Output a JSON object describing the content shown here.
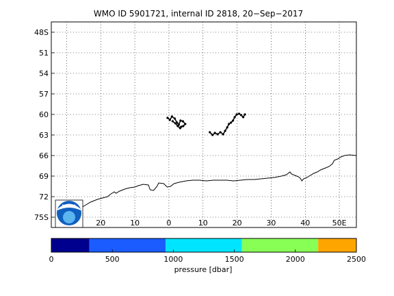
{
  "title": "WMO ID 5901721, internal ID 2818, 20−Sep−2017",
  "map": {
    "lat_labels": [
      {
        "value": -48,
        "label": "48S"
      },
      {
        "value": -51,
        "label": "51"
      },
      {
        "value": -54,
        "label": "54"
      },
      {
        "value": -57,
        "label": "57"
      },
      {
        "value": -60,
        "label": "60"
      },
      {
        "value": -63,
        "label": "63"
      },
      {
        "value": -66,
        "label": "66"
      },
      {
        "value": -69,
        "label": "69"
      },
      {
        "value": -72,
        "label": "72"
      },
      {
        "value": -75,
        "label": "75S"
      }
    ],
    "lon_labels": [
      {
        "value": -30,
        "label": "30W"
      },
      {
        "value": -20,
        "label": "20"
      },
      {
        "value": -10,
        "label": "10"
      },
      {
        "value": 0,
        "label": "0"
      },
      {
        "value": 10,
        "label": "10"
      },
      {
        "value": 20,
        "label": "20"
      },
      {
        "value": 30,
        "label": "30"
      },
      {
        "value": 40,
        "label": "40"
      },
      {
        "value": 50,
        "label": "50E"
      }
    ],
    "grid": "dotted",
    "logo_icon": "noaa-logo",
    "logo_text": "NOAA",
    "trajectory_color": "#000000",
    "track_west": [
      [
        -0.4,
        -60.5
      ],
      [
        0.3,
        -60.8
      ],
      [
        0.9,
        -60.3
      ],
      [
        1.7,
        -60.6
      ],
      [
        2.4,
        -61.2
      ],
      [
        2.9,
        -61.5
      ],
      [
        3.4,
        -60.9
      ],
      [
        4.1,
        -61.0
      ],
      [
        4.8,
        -61.4
      ],
      [
        4.2,
        -61.7
      ],
      [
        3.6,
        -61.8
      ],
      [
        3.3,
        -62.0
      ],
      [
        2.6,
        -61.7
      ],
      [
        1.9,
        -61.3
      ],
      [
        1.1,
        -61.0
      ]
    ],
    "track_east": [
      [
        12.0,
        -62.6
      ],
      [
        12.8,
        -63.0
      ],
      [
        13.5,
        -62.7
      ],
      [
        14.3,
        -62.9
      ],
      [
        15.1,
        -62.6
      ],
      [
        15.9,
        -62.9
      ],
      [
        16.5,
        -62.4
      ],
      [
        17.1,
        -61.9
      ],
      [
        17.6,
        -61.4
      ],
      [
        18.2,
        -61.2
      ],
      [
        18.8,
        -60.9
      ],
      [
        19.3,
        -60.4
      ],
      [
        19.9,
        -60.0
      ],
      [
        20.6,
        -59.9
      ],
      [
        21.2,
        -60.1
      ],
      [
        21.8,
        -60.4
      ],
      [
        22.3,
        -60.0
      ]
    ],
    "coastline": [
      [
        -33,
        -75.8
      ],
      [
        -31,
        -75.3
      ],
      [
        -29,
        -74.7
      ],
      [
        -27,
        -74.0
      ],
      [
        -25,
        -73.4
      ],
      [
        -23,
        -72.8
      ],
      [
        -21,
        -72.4
      ],
      [
        -19.5,
        -72.2
      ],
      [
        -18,
        -72.0
      ],
      [
        -17,
        -71.6
      ],
      [
        -16,
        -71.3
      ],
      [
        -15.5,
        -71.5
      ],
      [
        -14.5,
        -71.2
      ],
      [
        -13,
        -70.9
      ],
      [
        -11.5,
        -70.7
      ],
      [
        -10,
        -70.6
      ],
      [
        -9,
        -70.4
      ],
      [
        -7.5,
        -70.2
      ],
      [
        -6,
        -70.3
      ],
      [
        -5.5,
        -71.0
      ],
      [
        -4.5,
        -71.1
      ],
      [
        -3.5,
        -70.5
      ],
      [
        -3,
        -70.0
      ],
      [
        -1.5,
        -70.1
      ],
      [
        -0.5,
        -70.6
      ],
      [
        0.5,
        -70.5
      ],
      [
        1.5,
        -70.1
      ],
      [
        3,
        -69.9
      ],
      [
        5,
        -69.7
      ],
      [
        7,
        -69.6
      ],
      [
        9,
        -69.6
      ],
      [
        11,
        -69.7
      ],
      [
        13,
        -69.6
      ],
      [
        15,
        -69.6
      ],
      [
        17,
        -69.6
      ],
      [
        19,
        -69.7
      ],
      [
        21,
        -69.6
      ],
      [
        23,
        -69.5
      ],
      [
        25,
        -69.5
      ],
      [
        27,
        -69.4
      ],
      [
        29,
        -69.3
      ],
      [
        31,
        -69.2
      ],
      [
        33,
        -69.0
      ],
      [
        34.5,
        -68.8
      ],
      [
        35.5,
        -68.4
      ],
      [
        36,
        -68.7
      ],
      [
        37,
        -68.9
      ],
      [
        38,
        -69.1
      ],
      [
        38.5,
        -69.3
      ],
      [
        39,
        -69.7
      ],
      [
        39.5,
        -69.4
      ],
      [
        40.5,
        -69.2
      ],
      [
        41.5,
        -68.9
      ],
      [
        42.5,
        -68.6
      ],
      [
        43.5,
        -68.4
      ],
      [
        44.5,
        -68.1
      ],
      [
        46,
        -67.8
      ],
      [
        47,
        -67.6
      ],
      [
        48,
        -67.2
      ],
      [
        48.5,
        -66.7
      ],
      [
        49.5,
        -66.5
      ],
      [
        50.5,
        -66.2
      ],
      [
        51.5,
        -66.0
      ],
      [
        53,
        -65.9
      ],
      [
        55,
        -66.0
      ]
    ],
    "xlim": [
      -34.5,
      55
    ],
    "ylim": [
      -76.5,
      -46.5
    ]
  },
  "colorbar": {
    "label": "pressure [dbar]",
    "min": 0,
    "max": 2500,
    "ticks": [
      {
        "value": 0,
        "label": "0"
      },
      {
        "value": 500,
        "label": "500"
      },
      {
        "value": 1000,
        "label": "1000"
      },
      {
        "value": 1500,
        "label": "1500"
      },
      {
        "value": 2000,
        "label": "2000"
      },
      {
        "value": 2500,
        "label": "2500"
      }
    ],
    "bands": [
      {
        "from": 0,
        "to": 312,
        "color": "#00008f"
      },
      {
        "from": 312,
        "to": 937,
        "color": "#1a5cff"
      },
      {
        "from": 937,
        "to": 1562,
        "color": "#00e5ff"
      },
      {
        "from": 1562,
        "to": 2187,
        "color": "#88ff55"
      },
      {
        "from": 2187,
        "to": 2500,
        "color": "#ffa500"
      }
    ]
  }
}
